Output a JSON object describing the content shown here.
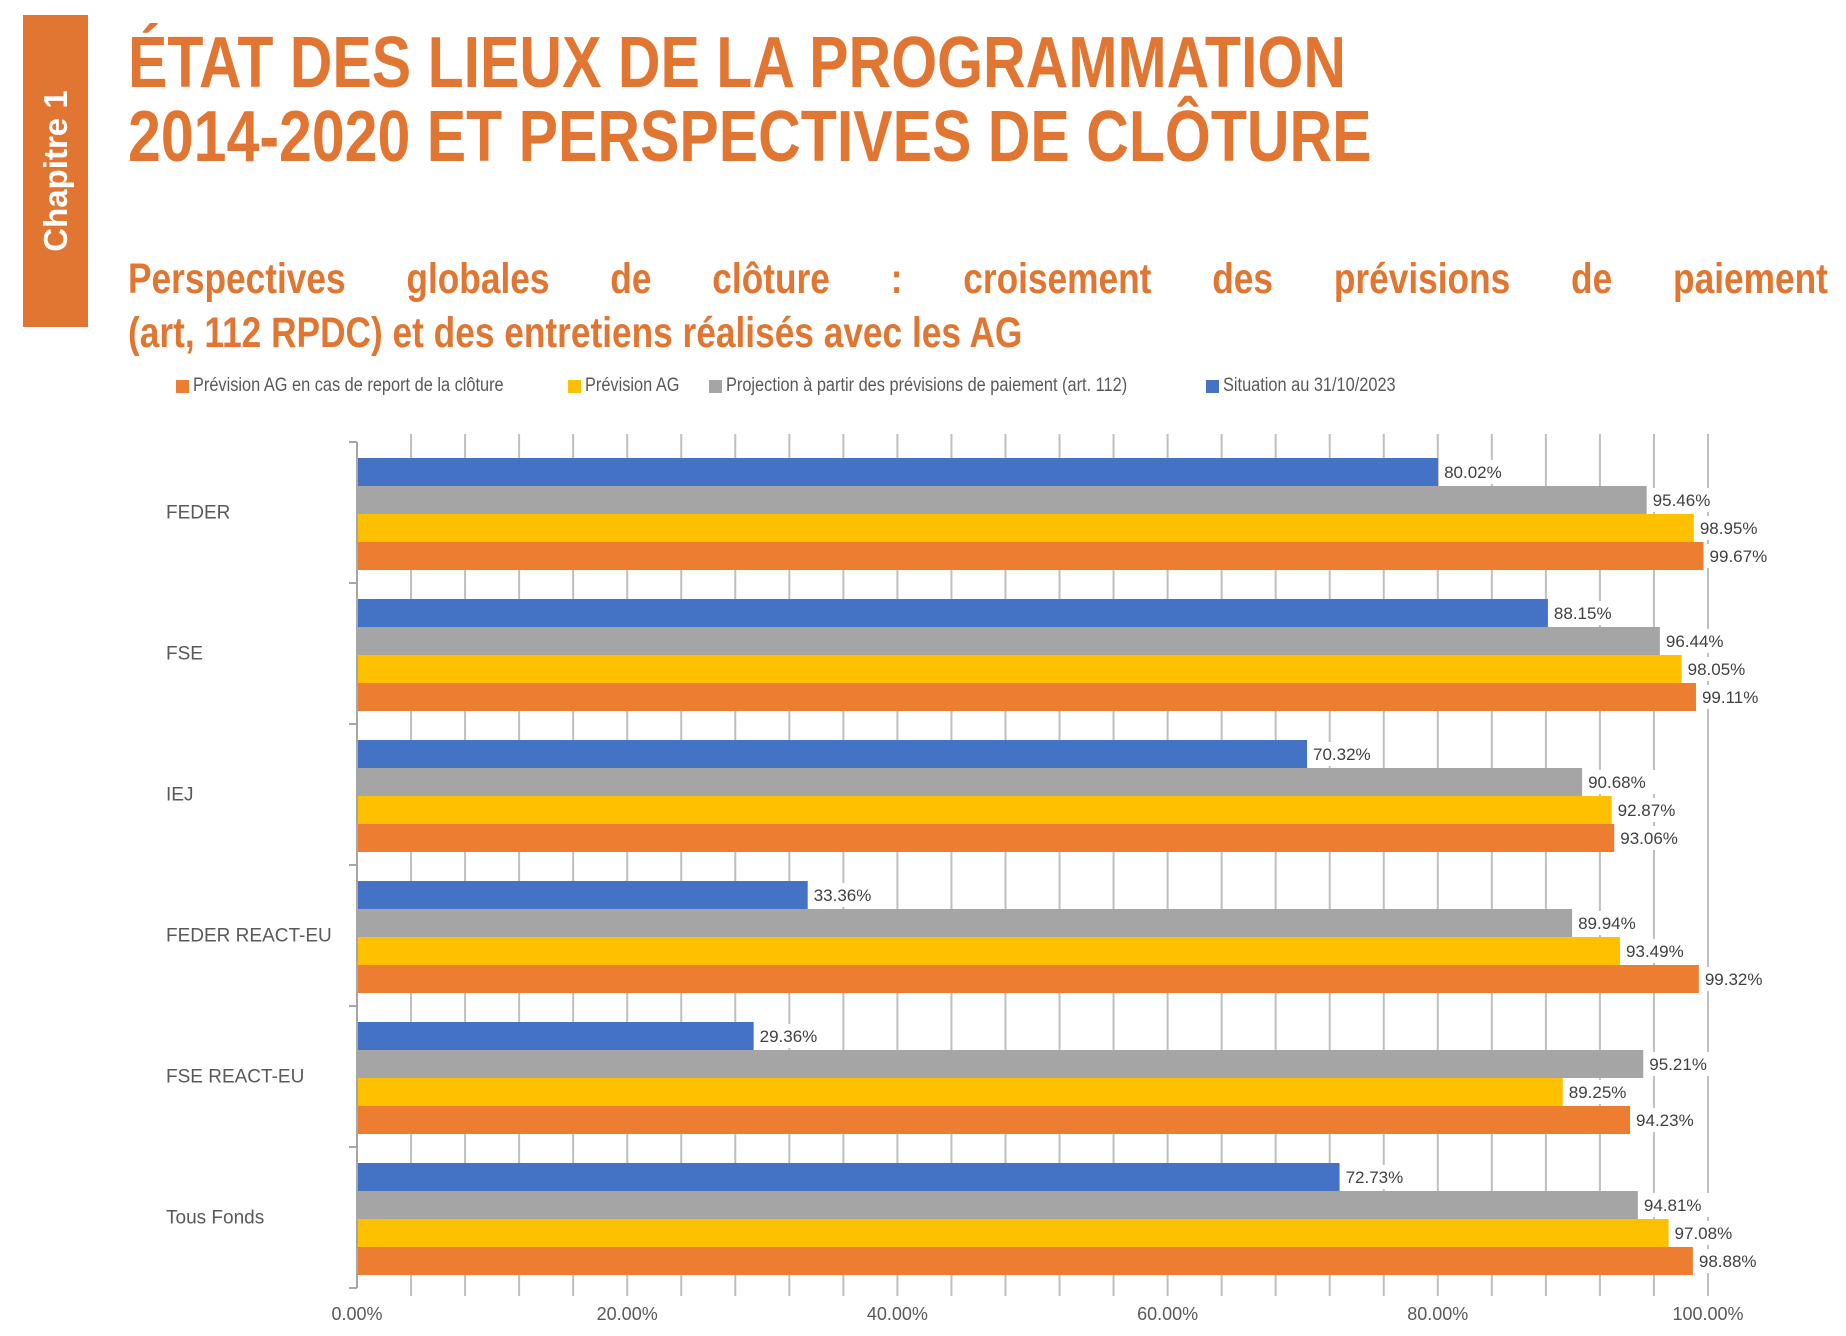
{
  "page": {
    "chapter_tab": "Chapitre 1",
    "title_lines": [
      "ÉTAT DES LIEUX DE LA PROGRAMMATION",
      "2014-2020 ET PERSPECTIVES DE CLÔTURE"
    ],
    "subtitle_line1_words": [
      "Perspectives",
      "globales",
      "de",
      "clôture",
      ":",
      "croisement",
      "des",
      "prévisions",
      "de",
      "paiement"
    ],
    "subtitle_line2": "(art, 112 RPDC) et des entretiens réalisés avec les AG",
    "accent_color": "#E07632"
  },
  "chart_data": {
    "type": "bar",
    "orientation": "horizontal",
    "title": "",
    "xlabel": "",
    "ylabel": "",
    "xlim": [
      0,
      100
    ],
    "x_tick_labels": [
      "0.00%",
      "20.00%",
      "40.00%",
      "60.00%",
      "80.00%",
      "100.00%"
    ],
    "x_ticks": [
      0,
      20,
      40,
      60,
      80,
      100
    ],
    "minor_grid_step": 4,
    "grid": true,
    "legend_position": "top",
    "categories": [
      "FEDER",
      "FSE",
      "IEJ",
      "FEDER REACT-EU",
      "FSE REACT-EU",
      "Tous Fonds"
    ],
    "legend_order": [
      3,
      2,
      1,
      0
    ],
    "series": [
      {
        "name": "Situation au 31/10/2023",
        "color": "#4472C4",
        "values": [
          80.02,
          88.15,
          70.32,
          33.36,
          29.36,
          72.73
        ],
        "labels": [
          "80.02%",
          "88.15%",
          "70.32%",
          "33.36%",
          "29.36%",
          "72.73%"
        ]
      },
      {
        "name": "Projection à partir des prévisions de paiement (art. 112)",
        "color": "#A5A5A5",
        "values": [
          95.46,
          96.44,
          90.68,
          89.94,
          95.21,
          94.81
        ],
        "labels": [
          "95.46%",
          "96.44%",
          "90.68%",
          "89.94%",
          "95.21%",
          "94.81%"
        ]
      },
      {
        "name": "Prévision AG",
        "color": "#FFC000",
        "values": [
          98.95,
          98.05,
          92.87,
          93.49,
          89.25,
          97.08
        ],
        "labels": [
          "98.95%",
          "98.05%",
          "92.87%",
          "93.49%",
          "89.25%",
          "97.08%"
        ]
      },
      {
        "name": "Prévision AG en cas de report de la clôture",
        "color": "#ED7D31",
        "values": [
          99.67,
          99.11,
          93.06,
          99.32,
          94.23,
          98.88
        ],
        "labels": [
          "99.67%",
          "99.11%",
          "93.06%",
          "99.32%",
          "94.23%",
          "98.88%"
        ]
      }
    ]
  }
}
